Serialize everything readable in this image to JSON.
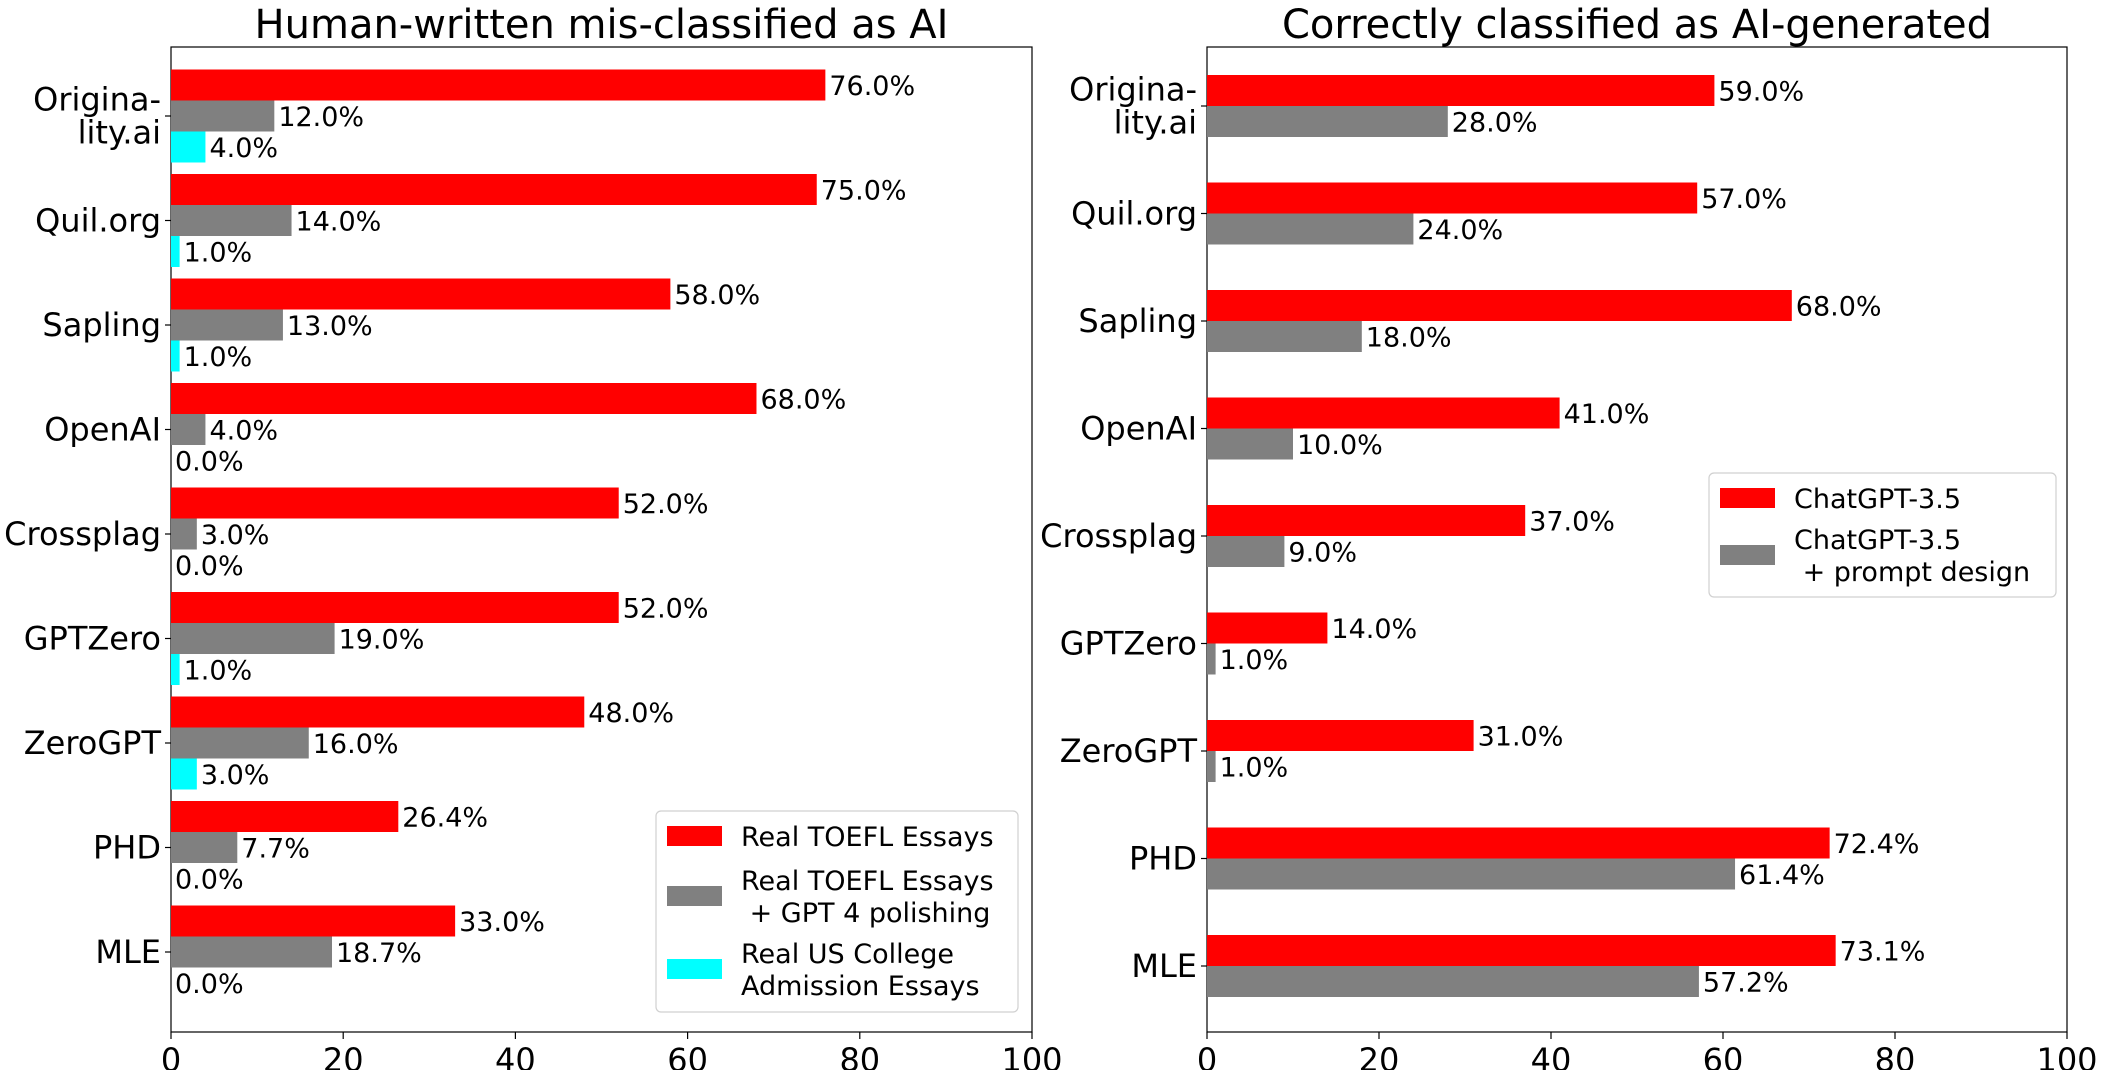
{
  "chart_data": [
    {
      "type": "bar",
      "orientation": "horizontal",
      "title": "Human-written mis-classified as AI",
      "categories": [
        "Origina-\nlity.ai",
        "Quil.org",
        "Sapling",
        "OpenAI",
        "Crossplag",
        "GPTZero",
        "ZeroGPT",
        "PHD",
        "MLE"
      ],
      "series": [
        {
          "name": "Real TOEFL Essays",
          "color": "#ff0000",
          "values": [
            76.0,
            75.0,
            58.0,
            68.0,
            52.0,
            52.0,
            48.0,
            26.4,
            33.0
          ],
          "labels": [
            "76.0%",
            "75.0%",
            "58.0%",
            "68.0%",
            "52.0%",
            "52.0%",
            "48.0%",
            "26.4%",
            "33.0%"
          ]
        },
        {
          "name": "Real TOEFL Essays\n + GPT 4 polishing",
          "color": "#808080",
          "values": [
            12.0,
            14.0,
            13.0,
            4.0,
            3.0,
            19.0,
            16.0,
            7.7,
            18.7
          ],
          "labels": [
            "12.0%",
            "14.0%",
            "13.0%",
            "4.0%",
            "3.0%",
            "19.0%",
            "16.0%",
            "7.7%",
            "18.7%"
          ]
        },
        {
          "name": "Real US College\nAdmission Essays",
          "color": "#00ffff",
          "values": [
            4.0,
            1.0,
            1.0,
            0.0,
            0.0,
            1.0,
            3.0,
            0.0,
            0.0
          ],
          "labels": [
            "4.0%",
            "1.0%",
            "1.0%",
            "0.0%",
            "0.0%",
            "1.0%",
            "3.0%",
            "0.0%",
            "0.0%"
          ]
        }
      ],
      "xlim": [
        0,
        100
      ],
      "xticks": [
        0,
        20,
        40,
        60,
        80,
        100
      ],
      "xtick_labels": [
        "0",
        "20",
        "40",
        "60",
        "80",
        "100"
      ],
      "grid": false,
      "legend_position": "lower-right"
    },
    {
      "type": "bar",
      "orientation": "horizontal",
      "title": "Correctly classified as AI-generated",
      "categories": [
        "Origina-\nlity.ai",
        "Quil.org",
        "Sapling",
        "OpenAI",
        "Crossplag",
        "GPTZero",
        "ZeroGPT",
        "PHD",
        "MLE"
      ],
      "series": [
        {
          "name": "ChatGPT-3.5",
          "color": "#ff0000",
          "values": [
            59.0,
            57.0,
            68.0,
            41.0,
            37.0,
            14.0,
            31.0,
            72.4,
            73.1
          ],
          "labels": [
            "59.0%",
            "57.0%",
            "68.0%",
            "41.0%",
            "37.0%",
            "14.0%",
            "31.0%",
            "72.4%",
            "73.1%"
          ]
        },
        {
          "name": "ChatGPT-3.5\n + prompt design",
          "color": "#808080",
          "values": [
            28.0,
            24.0,
            18.0,
            10.0,
            9.0,
            1.0,
            1.0,
            61.4,
            57.2
          ],
          "labels": [
            "28.0%",
            "24.0%",
            "18.0%",
            "10.0%",
            "9.0%",
            "1.0%",
            "1.0%",
            "61.4%",
            "57.2%"
          ]
        }
      ],
      "xlim": [
        0,
        100
      ],
      "xticks": [
        0,
        20,
        40,
        60,
        80,
        100
      ],
      "xtick_labels": [
        "0",
        "20",
        "40",
        "60",
        "80",
        "100"
      ],
      "grid": false,
      "legend_position": "center-right"
    }
  ]
}
